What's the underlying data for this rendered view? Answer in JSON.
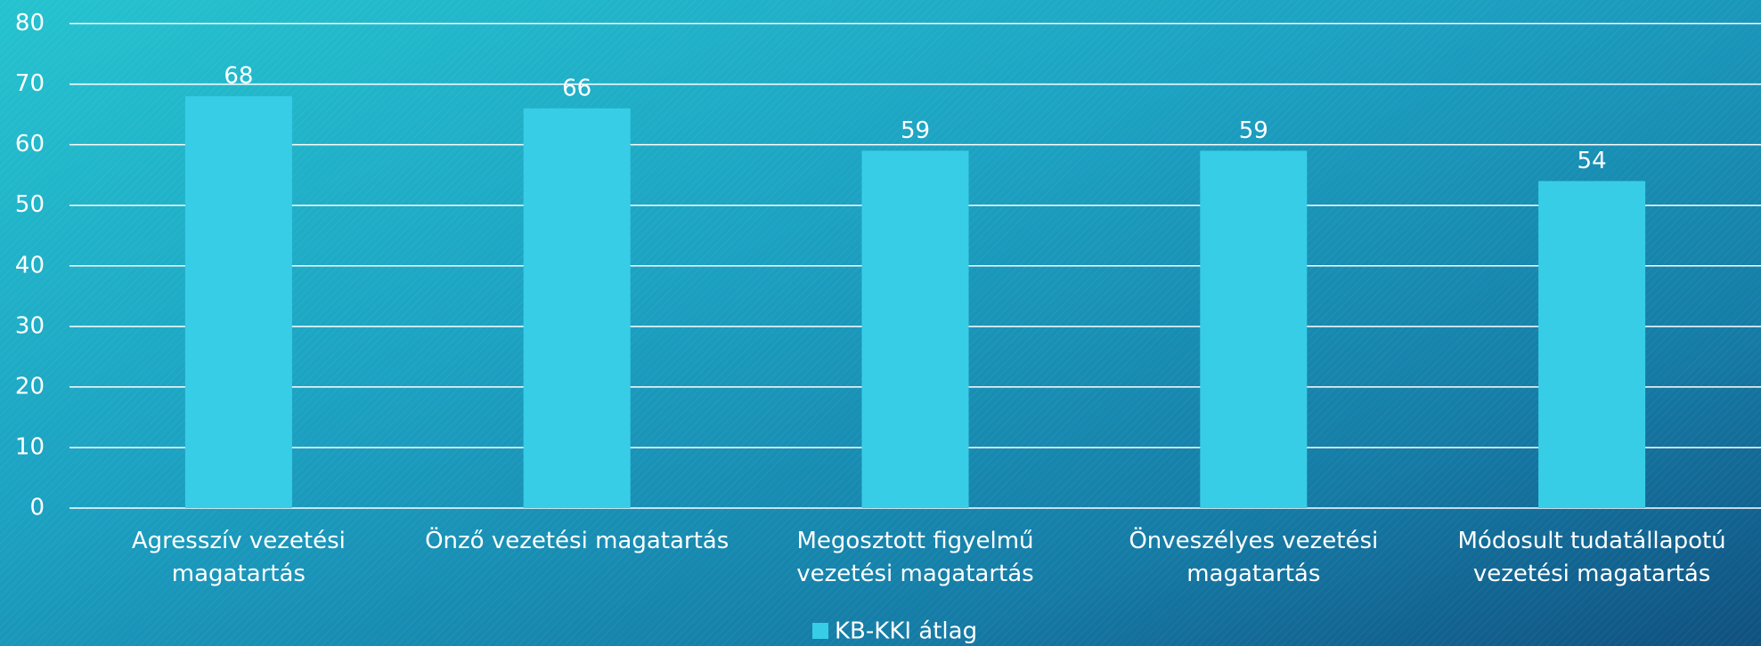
{
  "chart_data": {
    "type": "bar",
    "categories": [
      "Agresszív vezetési magatartás",
      "Önző vezetési magatartás",
      "Megosztott figyelmű vezetési magatartás",
      "Önveszélyes vezetési magatartás",
      "Módosult tudatállapotú vezetési magatartás"
    ],
    "series": [
      {
        "name": "KB-KKI átlag",
        "color": "#38cde6",
        "values": [
          68,
          66,
          59,
          59,
          54
        ]
      }
    ],
    "ylim": [
      0,
      80
    ],
    "yticks": [
      0,
      10,
      20,
      30,
      40,
      50,
      60,
      70,
      80
    ],
    "grid": true,
    "legend": "bottom"
  }
}
